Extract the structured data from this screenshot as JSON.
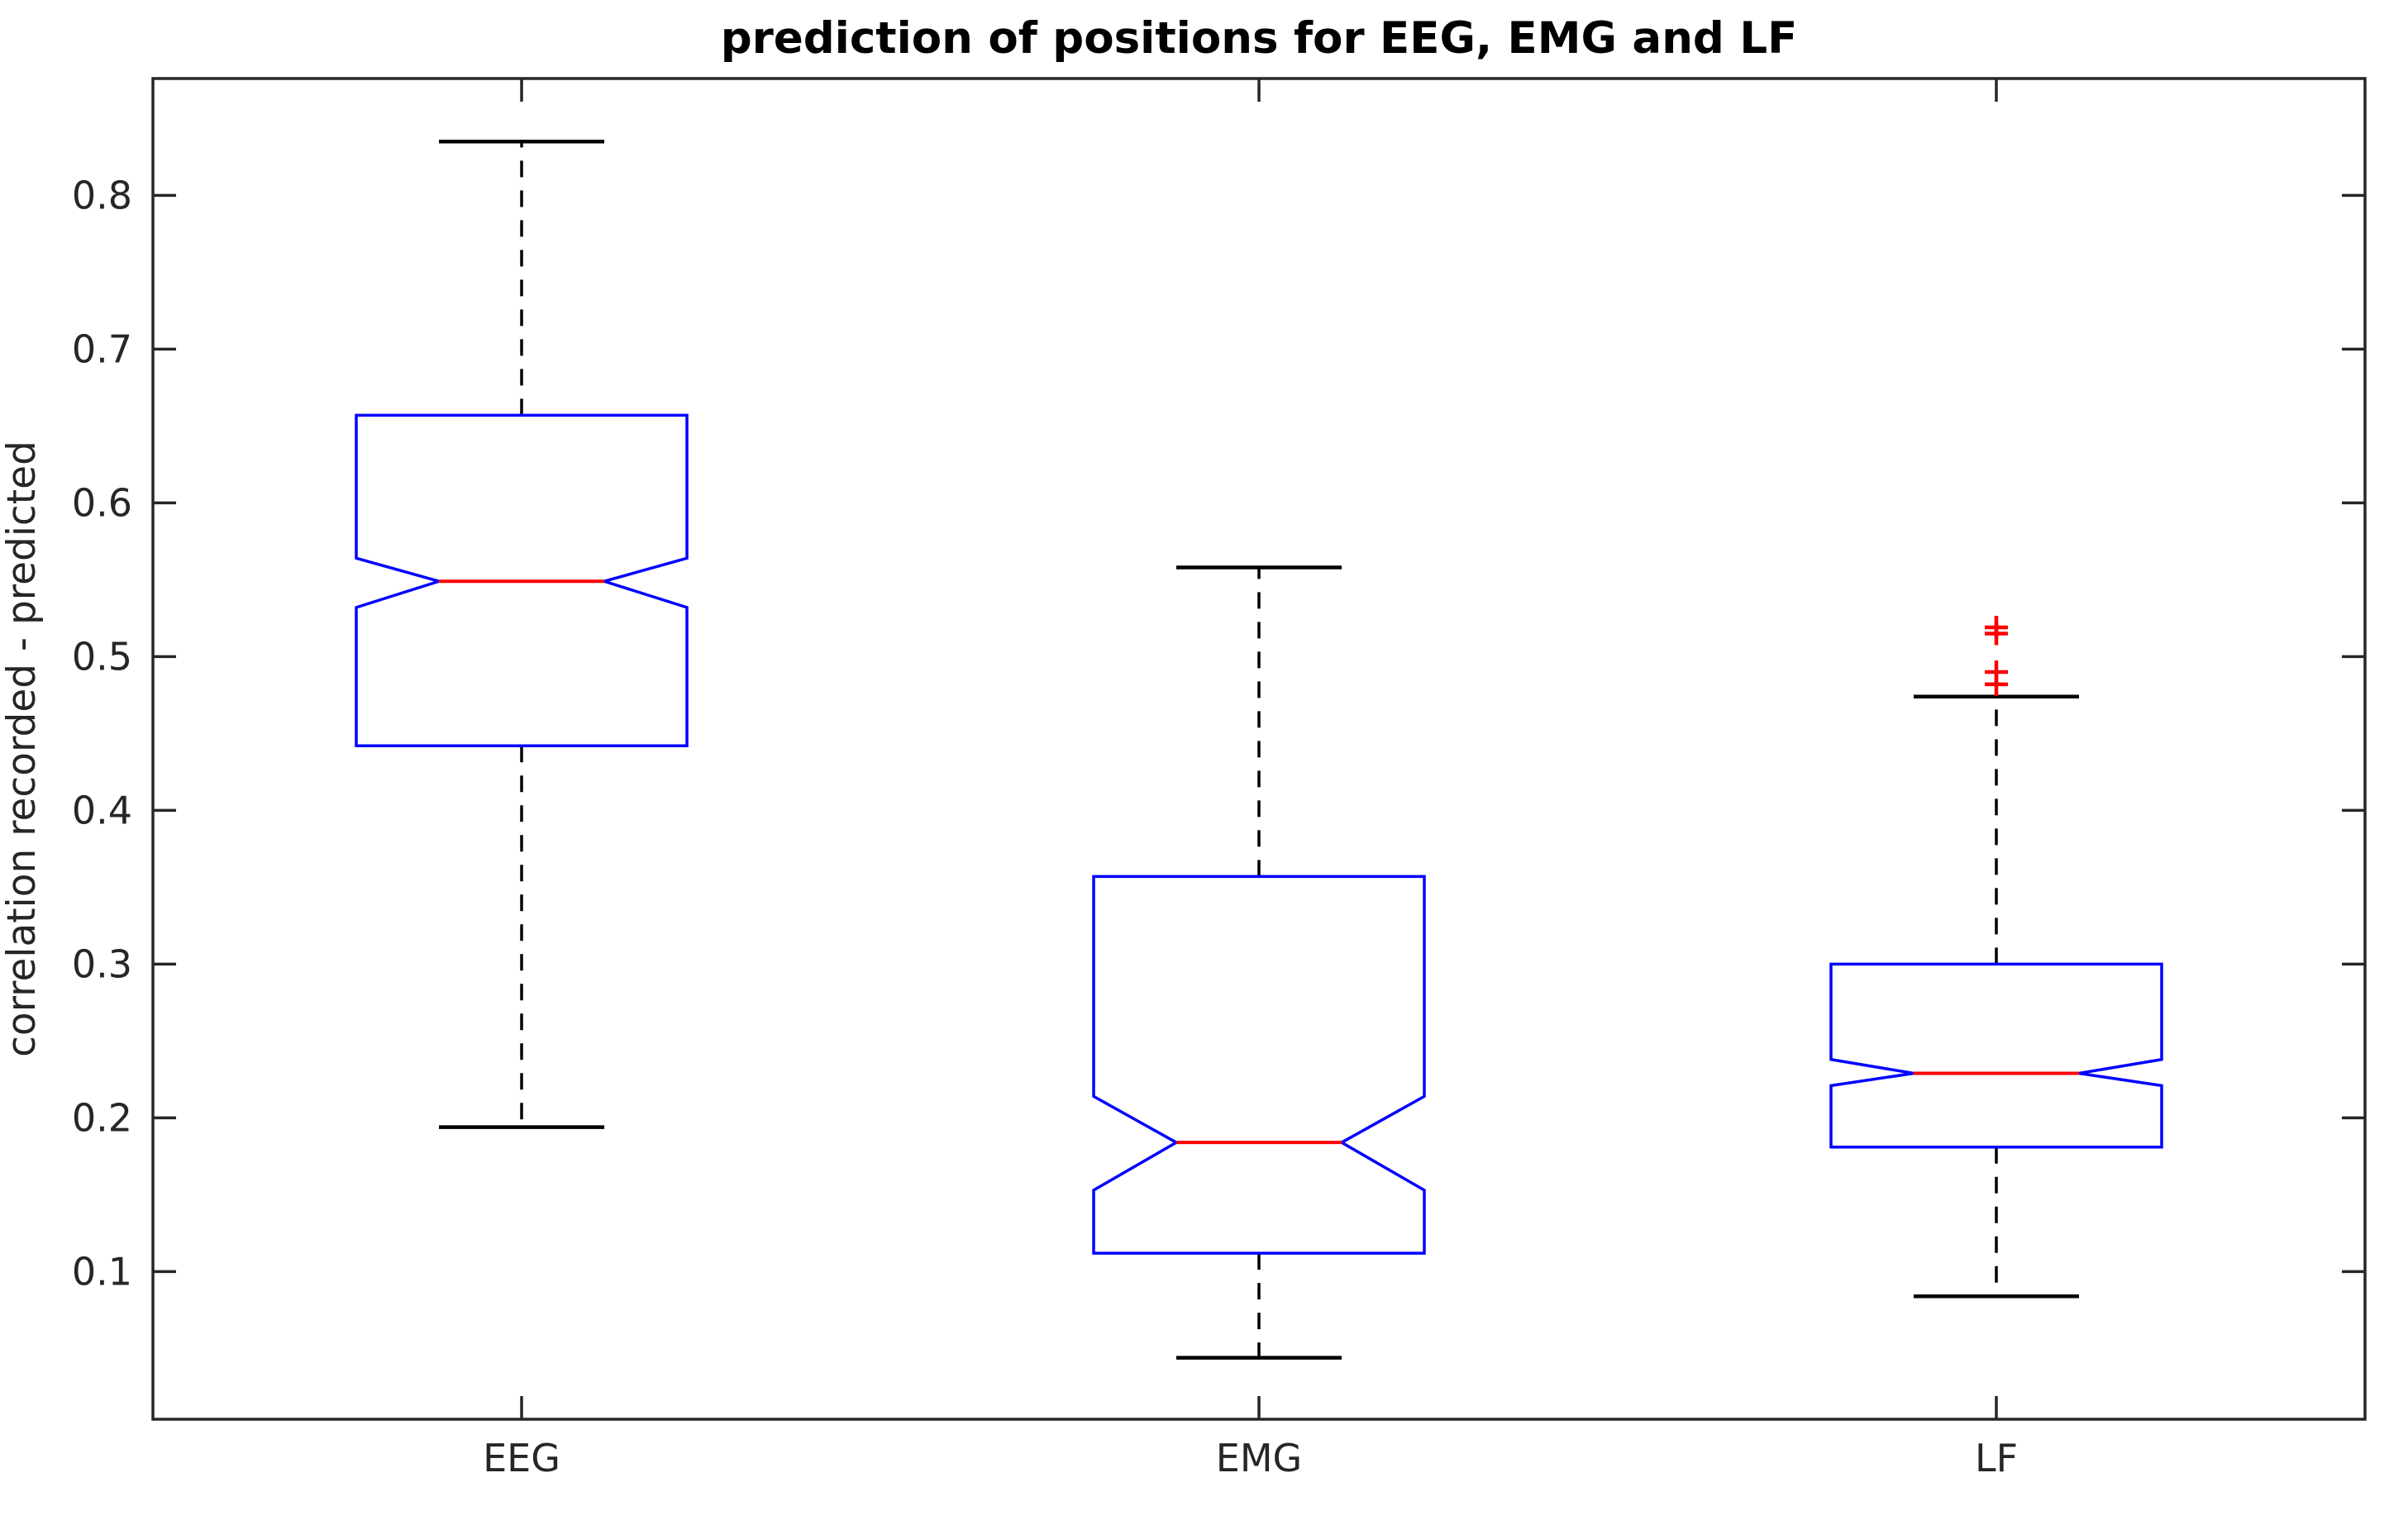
{
  "figure": {
    "title": "prediction of positions for EEG, EMG and LF",
    "ylabel": "correlation recorded - predicted"
  },
  "colors": {
    "box": "#0000ff",
    "median": "#ff0000",
    "outlier": "#ff0000",
    "whisker": "#000000",
    "axis": "#262626",
    "background": "#ffffff"
  },
  "chart_data": {
    "type": "boxplot",
    "title": "prediction of positions for EEG, EMG and LF",
    "xlabel": "",
    "ylabel": "correlation recorded - predicted",
    "categories": [
      "EEG",
      "EMG",
      "LF"
    ],
    "yticks": [
      0.1,
      0.2,
      0.3,
      0.4,
      0.5,
      0.6,
      0.7,
      0.8
    ],
    "ytick_labels": [
      "0.1",
      "0.2",
      "0.3",
      "0.4",
      "0.5",
      "0.6",
      "0.7",
      "0.8"
    ],
    "ylim": [
      0.004,
      0.876
    ],
    "notched": true,
    "whisker_style": "dashed",
    "grid": false,
    "legend": null,
    "series": [
      {
        "name": "EEG",
        "whisker_low": 0.194,
        "q1": 0.442,
        "median": 0.549,
        "q3": 0.657,
        "whisker_high": 0.835,
        "notch_low": 0.532,
        "notch_high": 0.564,
        "outliers": []
      },
      {
        "name": "EMG",
        "whisker_low": 0.044,
        "q1": 0.112,
        "median": 0.184,
        "q3": 0.357,
        "whisker_high": 0.558,
        "notch_low": 0.153,
        "notch_high": 0.214,
        "outliers": []
      },
      {
        "name": "LF",
        "whisker_low": 0.084,
        "q1": 0.181,
        "median": 0.229,
        "q3": 0.3,
        "whisker_high": 0.474,
        "notch_low": 0.221,
        "notch_high": 0.238,
        "outliers": [
          0.519,
          0.515,
          0.49,
          0.482
        ]
      }
    ]
  }
}
